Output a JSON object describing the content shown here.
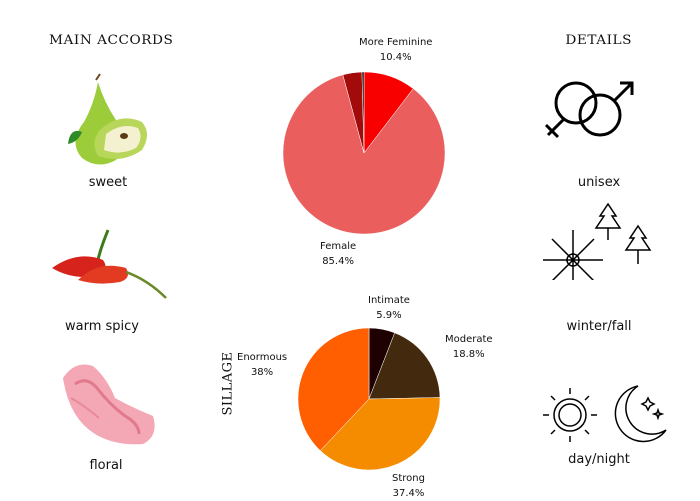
{
  "left": {
    "title": "MAIN ACCORDS",
    "accords": [
      {
        "label": "sweet",
        "icon": "pear-icon"
      },
      {
        "label": "warm spicy",
        "icon": "chili-pepper-icon"
      },
      {
        "label": "floral",
        "icon": "carnation-flower-icon"
      }
    ]
  },
  "right": {
    "title": "DETAILS",
    "items": [
      {
        "label": "unisex",
        "icon": "gender-symbols-icon"
      },
      {
        "label": "winter/fall",
        "icon": "snowflake-maple-leaf-icon"
      },
      {
        "label": "day/night",
        "icon": "sun-moon-icon"
      }
    ]
  },
  "chart_data": [
    {
      "type": "pie",
      "start": "top",
      "direction": "clockwise",
      "slices": [
        {
          "name": "More Feminine",
          "value": 10.4,
          "label": "More Feminine",
          "pct": "10.4%",
          "color": "#f90000"
        },
        {
          "name": "Female",
          "value": 85.4,
          "label": "Female",
          "pct": "85.4%",
          "color": "#eb5e5e"
        },
        {
          "value": 3.8,
          "color": "#a30a0a"
        },
        {
          "value": 0.4,
          "color": "#1a0000"
        }
      ]
    },
    {
      "type": "pie",
      "title": "SILLAGE",
      "start": "top",
      "direction": "clockwise",
      "slices": [
        {
          "name": "Intimate",
          "value": 5.9,
          "label": "Intimate",
          "pct": "5.9%",
          "color": "#1e0000"
        },
        {
          "name": "Moderate",
          "value": 18.8,
          "label": "Moderate",
          "pct": "18.8%",
          "color": "#432a0e"
        },
        {
          "name": "Strong",
          "value": 37.4,
          "label": "Strong",
          "pct": "37.4%",
          "color": "#f58c00"
        },
        {
          "name": "Enormous",
          "value": 38,
          "label": "Enormous",
          "pct": "38%",
          "color": "#ff5f00"
        }
      ]
    }
  ]
}
